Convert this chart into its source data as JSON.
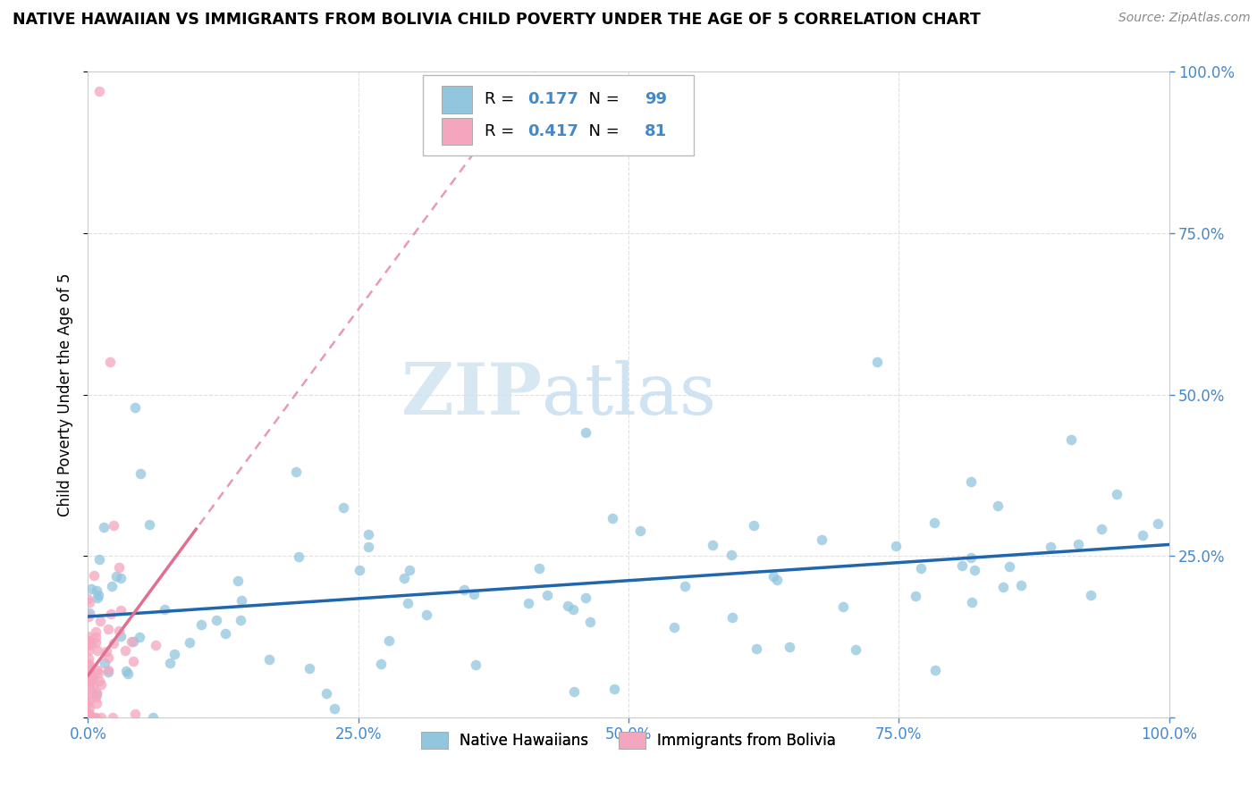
{
  "title": "NATIVE HAWAIIAN VS IMMIGRANTS FROM BOLIVIA CHILD POVERTY UNDER THE AGE OF 5 CORRELATION CHART",
  "source": "Source: ZipAtlas.com",
  "ylabel": "Child Poverty Under the Age of 5",
  "xlim": [
    0,
    1.0
  ],
  "ylim": [
    0,
    1.0
  ],
  "xtick_labels": [
    "0.0%",
    "25.0%",
    "50.0%",
    "75.0%",
    "100.0%"
  ],
  "xtick_values": [
    0.0,
    0.25,
    0.5,
    0.75,
    1.0
  ],
  "ytick_right_labels": [
    "",
    "25.0%",
    "50.0%",
    "75.0%",
    "100.0%"
  ],
  "ytick_values": [
    0.0,
    0.25,
    0.5,
    0.75,
    1.0
  ],
  "legend_labels": [
    "Native Hawaiians",
    "Immigrants from Bolivia"
  ],
  "r_native": 0.177,
  "n_native": 99,
  "r_bolivia": 0.417,
  "n_bolivia": 81,
  "color_native": "#92c5de",
  "color_bolivia": "#f4a6be",
  "color_native_line": "#2166ac",
  "color_bolivia_line": "#e07090",
  "watermark_zip": "ZIP",
  "watermark_atlas": "atlas",
  "background_color": "#ffffff",
  "tick_color": "#4488cc",
  "grid_color": "#cccccc"
}
